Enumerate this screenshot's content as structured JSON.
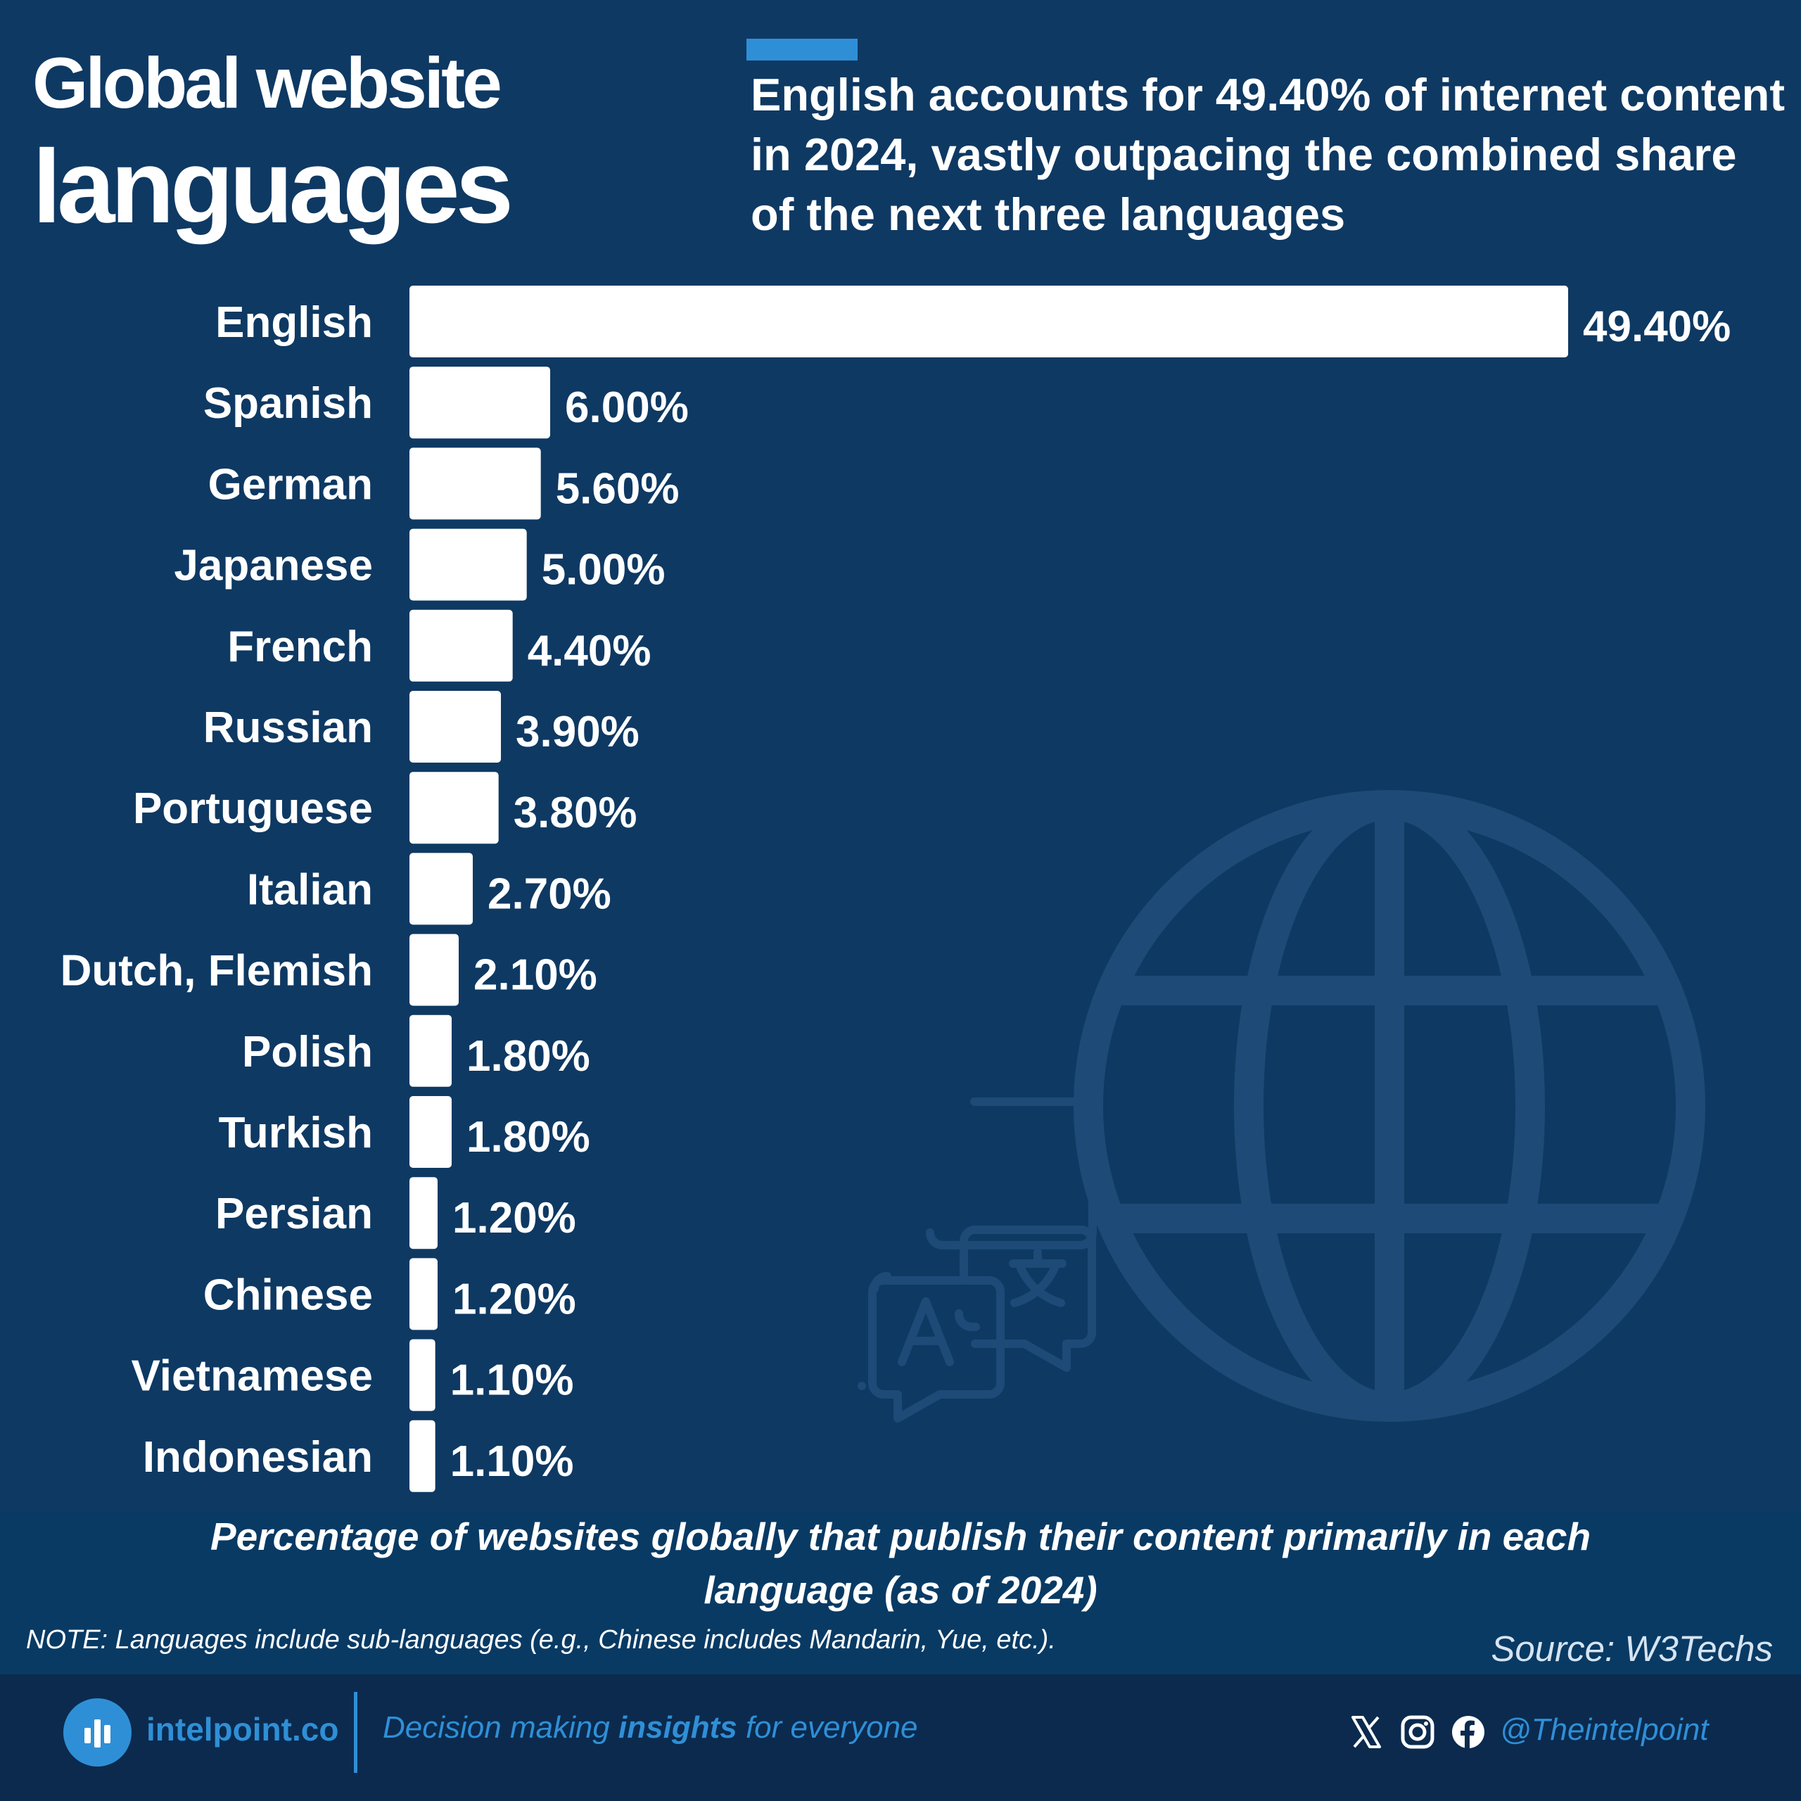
{
  "header": {
    "title_line_1": "Global website",
    "title_line_2": "languages",
    "subtitle": "English accounts for 49.40% of internet content in 2024, vastly outpacing the combined share of the next three languages"
  },
  "chart_data": {
    "type": "bar",
    "orientation": "horizontal",
    "categories": [
      "English",
      "Spanish",
      "German",
      "Japanese",
      "French",
      "Russian",
      "Portuguese",
      "Italian",
      "Dutch, Flemish",
      "Polish",
      "Turkish",
      "Persian",
      "Chinese",
      "Vietnamese",
      "Indonesian"
    ],
    "values": [
      49.4,
      6.0,
      5.6,
      5.0,
      4.4,
      3.9,
      3.8,
      2.7,
      2.1,
      1.8,
      1.8,
      1.2,
      1.2,
      1.1,
      1.1
    ],
    "value_labels": [
      "49.40%",
      "6.00%",
      "5.60%",
      "5.00%",
      "4.40%",
      "3.90%",
      "3.80%",
      "2.70%",
      "2.10%",
      "1.80%",
      "1.80%",
      "1.20%",
      "1.20%",
      "1.10%",
      "1.10%"
    ],
    "unit": "%",
    "grid": false,
    "bar_color": "#ffffff",
    "background_color": "#0e3963"
  },
  "caption": "Percentage of websites globally that publish their content primarily in each language (as of 2024)",
  "note": "NOTE: Languages include sub-languages (e.g., Chinese includes Mandarin, Yue, etc.).",
  "source": "Source: W3Techs",
  "footer": {
    "brand": "intelpoint.co",
    "tagline_pre": "Decision making ",
    "tagline_bold": "insights",
    "tagline_post": " for everyone",
    "handle": "@Theintelpoint",
    "social_icons": [
      "x-icon",
      "instagram-icon",
      "facebook-icon"
    ],
    "accent_color": "#2f8fd6"
  },
  "decorations": {
    "globe": "globe-icon",
    "translate": "translate-icon"
  }
}
